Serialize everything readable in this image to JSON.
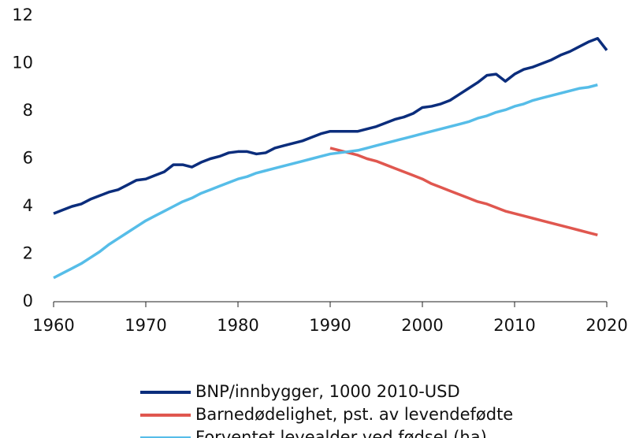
{
  "chart_data": {
    "type": "line",
    "x": [
      1960,
      1961,
      1962,
      1963,
      1964,
      1965,
      1966,
      1967,
      1968,
      1969,
      1970,
      1971,
      1972,
      1973,
      1974,
      1975,
      1976,
      1977,
      1978,
      1979,
      1980,
      1981,
      1982,
      1983,
      1984,
      1985,
      1986,
      1987,
      1988,
      1989,
      1990,
      1991,
      1992,
      1993,
      1994,
      1995,
      1996,
      1997,
      1998,
      1999,
      2000,
      2001,
      2002,
      2003,
      2004,
      2005,
      2006,
      2007,
      2008,
      2009,
      2010,
      2011,
      2012,
      2013,
      2014,
      2015,
      2016,
      2017,
      2018,
      2019,
      2020
    ],
    "series": [
      {
        "name": "BNP/innbygger, 1000 2010-USD",
        "color": "#0b2d7c",
        "values": [
          3.7,
          3.85,
          4.0,
          4.1,
          4.3,
          4.45,
          4.6,
          4.7,
          4.9,
          5.1,
          5.15,
          5.3,
          5.45,
          5.75,
          5.75,
          5.65,
          5.85,
          6.0,
          6.1,
          6.25,
          6.3,
          6.3,
          6.2,
          6.25,
          6.45,
          6.55,
          6.65,
          6.75,
          6.9,
          7.05,
          7.15,
          7.15,
          7.15,
          7.15,
          7.25,
          7.35,
          7.5,
          7.65,
          7.75,
          7.9,
          8.15,
          8.2,
          8.3,
          8.45,
          8.7,
          8.95,
          9.2,
          9.5,
          9.55,
          9.25,
          9.55,
          9.75,
          9.85,
          10.0,
          10.15,
          10.35,
          10.5,
          10.7,
          10.9,
          11.05,
          10.55
        ]
      },
      {
        "name": "Barnedødelighet, pst. av levendefødte",
        "color": "#e0574f",
        "values": [
          null,
          null,
          null,
          null,
          null,
          null,
          null,
          null,
          null,
          null,
          null,
          null,
          null,
          null,
          null,
          null,
          null,
          null,
          null,
          null,
          null,
          null,
          null,
          null,
          null,
          null,
          null,
          null,
          null,
          null,
          6.45,
          6.35,
          6.25,
          6.15,
          6.0,
          5.9,
          5.75,
          5.6,
          5.45,
          5.3,
          5.15,
          4.95,
          4.8,
          4.65,
          4.5,
          4.35,
          4.2,
          4.1,
          3.95,
          3.8,
          3.7,
          3.6,
          3.5,
          3.4,
          3.3,
          3.2,
          3.1,
          3.0,
          2.9,
          2.8,
          null
        ]
      },
      {
        "name": "Forventet levealder ved fødsel (ha)",
        "color": "#56bde8",
        "values": [
          1.0,
          1.2,
          1.4,
          1.6,
          1.85,
          2.1,
          2.4,
          2.65,
          2.9,
          3.15,
          3.4,
          3.6,
          3.8,
          4.0,
          4.2,
          4.35,
          4.55,
          4.7,
          4.85,
          5.0,
          5.15,
          5.25,
          5.4,
          5.5,
          5.6,
          5.7,
          5.8,
          5.9,
          6.0,
          6.1,
          6.2,
          6.25,
          6.3,
          6.35,
          6.45,
          6.55,
          6.65,
          6.75,
          6.85,
          6.95,
          7.05,
          7.15,
          7.25,
          7.35,
          7.45,
          7.55,
          7.7,
          7.8,
          7.95,
          8.05,
          8.2,
          8.3,
          8.45,
          8.55,
          8.65,
          8.75,
          8.85,
          8.95,
          9.0,
          9.1,
          null
        ]
      }
    ],
    "xlim": [
      1960,
      2020
    ],
    "xticks": [
      1960,
      1970,
      1980,
      1990,
      2000,
      2010,
      2020
    ],
    "ylim": [
      0,
      12
    ],
    "yticks": [
      0,
      2,
      4,
      6,
      8,
      10,
      12
    ]
  }
}
